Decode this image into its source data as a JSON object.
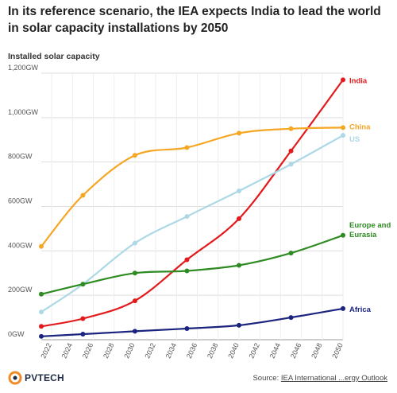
{
  "title": "In its reference scenario, the IEA expects India to lead the world in solar capacity installations by 2050",
  "subtitle": "Installed solar capacity",
  "chart_data": {
    "type": "line",
    "xlim": [
      2021,
      2050
    ],
    "ylim": [
      0,
      1200
    ],
    "x_ticks": [
      2022,
      2024,
      2026,
      2028,
      2030,
      2032,
      2034,
      2036,
      2038,
      2040,
      2042,
      2044,
      2046,
      2048,
      2050
    ],
    "y_ticks": [
      {
        "value": 0,
        "label": "0GW"
      },
      {
        "value": 200,
        "label": "200GW"
      },
      {
        "value": 400,
        "label": "400GW"
      },
      {
        "value": 600,
        "label": "600GW"
      },
      {
        "value": 800,
        "label": "800GW"
      },
      {
        "value": 1000,
        "label": "1,000GW"
      },
      {
        "value": 1200,
        "label": "1,200GW"
      }
    ],
    "grid": true,
    "x": [
      2021,
      2025,
      2030,
      2035,
      2040,
      2045,
      2050
    ],
    "series": [
      {
        "name": "India",
        "label": "India",
        "color": "#e31a1c",
        "values": [
          60,
          95,
          175,
          360,
          545,
          850,
          1170
        ]
      },
      {
        "name": "China",
        "label": "China",
        "color": "#f5a623",
        "values": [
          420,
          650,
          830,
          865,
          930,
          950,
          955
        ]
      },
      {
        "name": "US",
        "label": "US",
        "color": "#add8e6",
        "values": [
          125,
          250,
          435,
          555,
          670,
          790,
          920
        ]
      },
      {
        "name": "Europe and Eurasia",
        "label": "Europe and Eurasia",
        "color": "#2e8b22",
        "values": [
          205,
          250,
          300,
          310,
          335,
          390,
          470
        ]
      },
      {
        "name": "Africa",
        "label": "Africa",
        "color": "#1a237e",
        "values": [
          15,
          25,
          38,
          50,
          65,
          100,
          140
        ]
      }
    ]
  },
  "footer": {
    "brand": "PVTECH",
    "source_prefix": "Source: ",
    "source_link": "IEA International ...ergy Outlook"
  }
}
